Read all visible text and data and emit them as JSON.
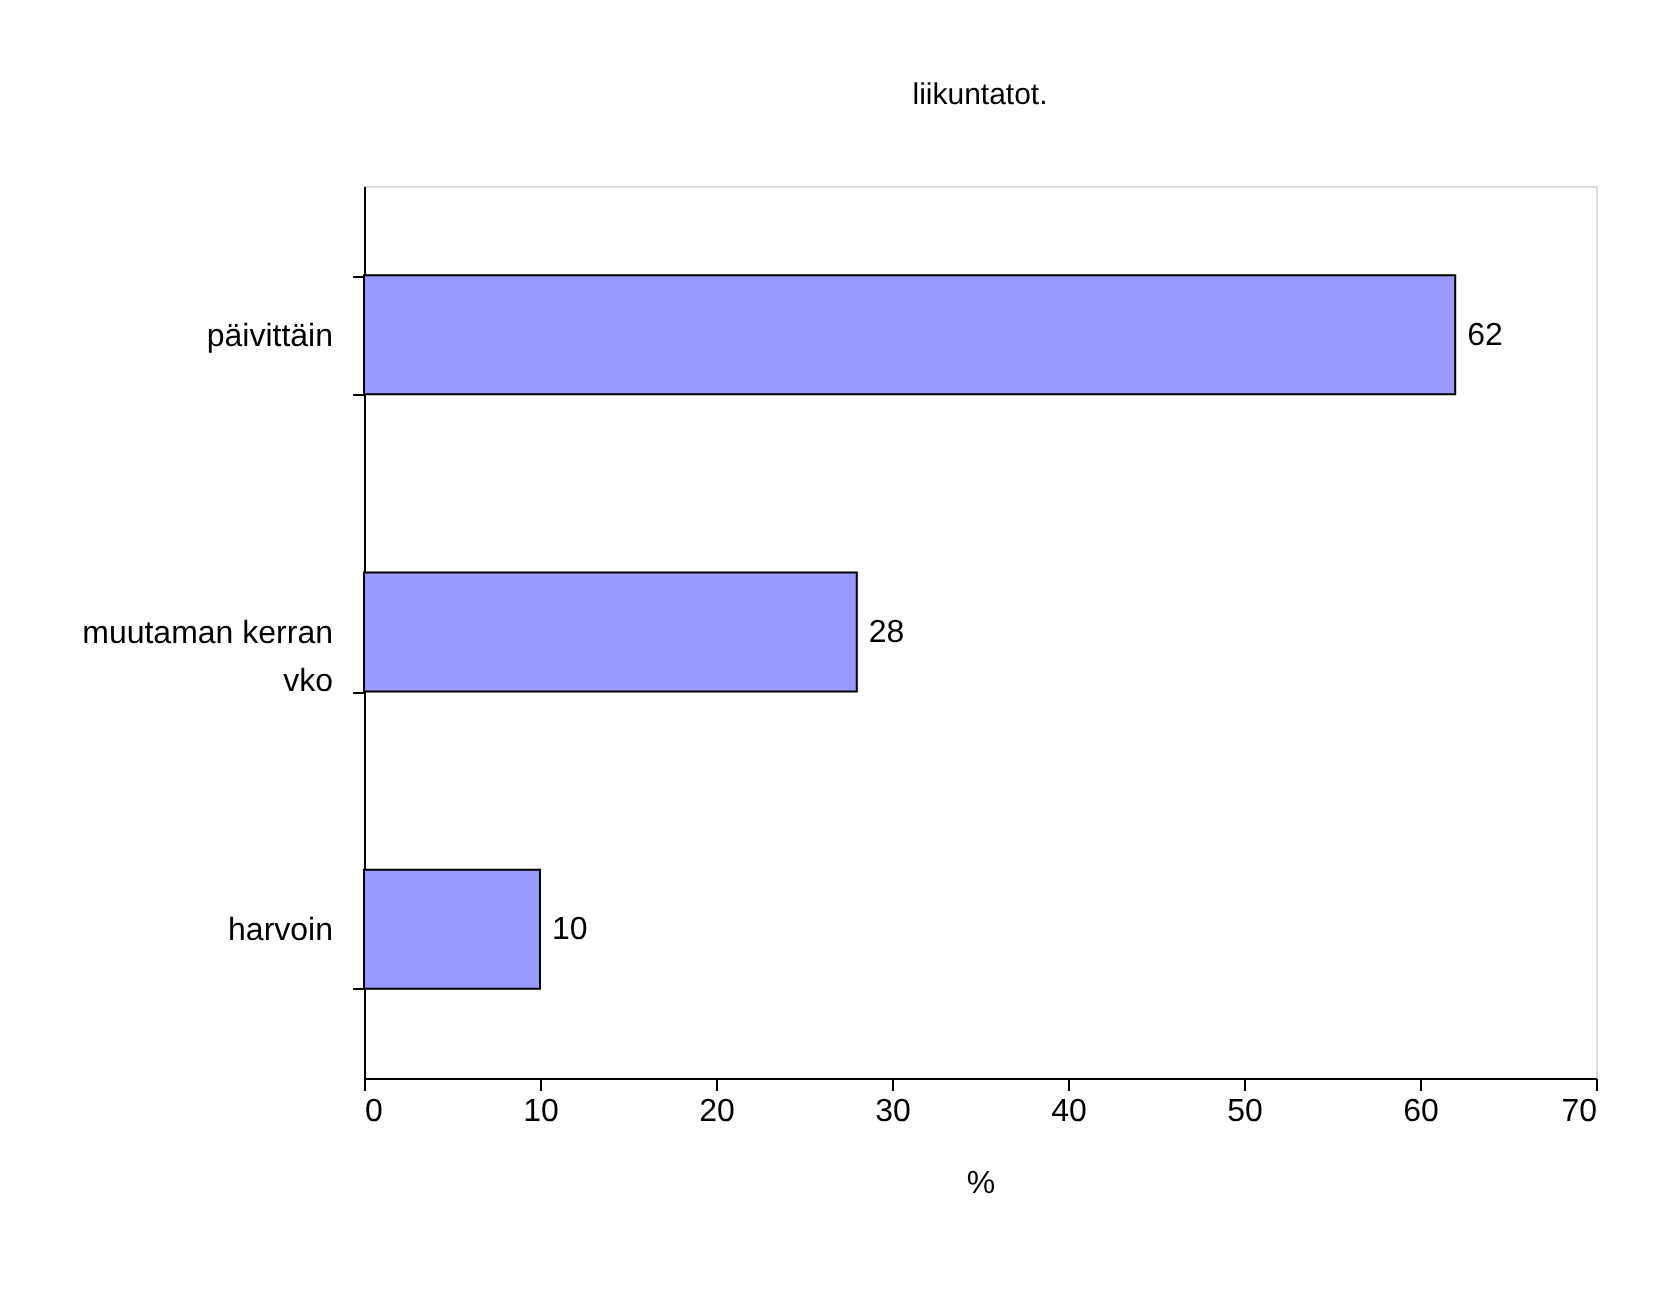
{
  "chart_data": {
    "type": "bar",
    "orientation": "horizontal",
    "title": "liikuntatot.",
    "xlabel": "%",
    "categories": [
      "päivittäin",
      "muutaman kerran vko",
      "harvoin"
    ],
    "values": [
      62,
      28,
      10
    ],
    "color": "#9999ff",
    "xlim": [
      0,
      70
    ],
    "xticks": [
      0,
      10,
      20,
      30,
      40,
      50,
      60,
      70
    ],
    "data_labels": true,
    "grid": false
  }
}
